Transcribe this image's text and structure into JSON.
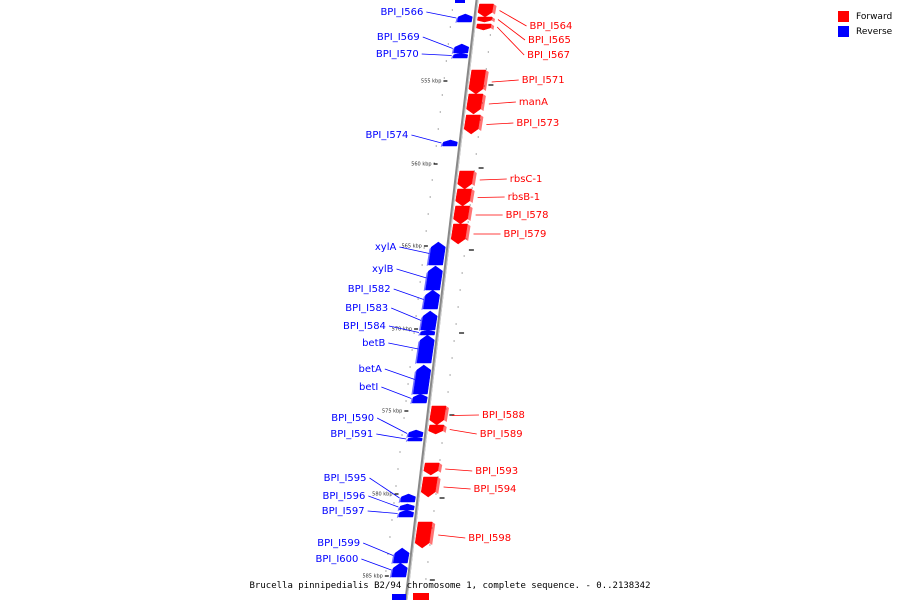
{
  "colors": {
    "forward": "#ff0000",
    "reverse": "#0000ff",
    "backbone": "#888888"
  },
  "legend": {
    "forward_label": "Forward",
    "reverse_label": "Reverse"
  },
  "caption": "Brucella pinnipedialis B2/94 chromosome 1, complete sequence. - 0..2138342",
  "ticks": [
    "555 kbp",
    "560 kbp",
    "565 kbp",
    "570 kbp",
    "575 kbp",
    "580 kbp",
    "585 kbp"
  ],
  "genes": [
    {
      "label": "BPI_I564",
      "strand": "forward"
    },
    {
      "label": "BPI_I565",
      "strand": "forward"
    },
    {
      "label": "BPI_I566",
      "strand": "reverse"
    },
    {
      "label": "BPI_I567",
      "strand": "forward"
    },
    {
      "label": "BPI_I569",
      "strand": "reverse"
    },
    {
      "label": "BPI_I570",
      "strand": "reverse"
    },
    {
      "label": "BPI_I571",
      "strand": "forward"
    },
    {
      "label": "manA",
      "strand": "forward"
    },
    {
      "label": "BPI_I573",
      "strand": "forward"
    },
    {
      "label": "BPI_I574",
      "strand": "reverse"
    },
    {
      "label": "rbsC-1",
      "strand": "forward"
    },
    {
      "label": "rbsB-1",
      "strand": "forward"
    },
    {
      "label": "BPI_I578",
      "strand": "forward"
    },
    {
      "label": "BPI_I579",
      "strand": "forward"
    },
    {
      "label": "xylA",
      "strand": "reverse"
    },
    {
      "label": "xylB",
      "strand": "reverse"
    },
    {
      "label": "BPI_I582",
      "strand": "reverse"
    },
    {
      "label": "BPI_I583",
      "strand": "reverse"
    },
    {
      "label": "BPI_I584",
      "strand": "reverse"
    },
    {
      "label": "betB",
      "strand": "reverse"
    },
    {
      "label": "betA",
      "strand": "reverse"
    },
    {
      "label": "betI",
      "strand": "reverse"
    },
    {
      "label": "BPI_I588",
      "strand": "forward"
    },
    {
      "label": "BPI_I589",
      "strand": "forward"
    },
    {
      "label": "BPI_I590",
      "strand": "reverse"
    },
    {
      "label": "BPI_I591",
      "strand": "reverse"
    },
    {
      "label": "BPI_I593",
      "strand": "forward"
    },
    {
      "label": "BPI_I594",
      "strand": "forward"
    },
    {
      "label": "BPI_I595",
      "strand": "reverse"
    },
    {
      "label": "BPI_I596",
      "strand": "reverse"
    },
    {
      "label": "BPI_I597",
      "strand": "reverse"
    },
    {
      "label": "BPI_I598",
      "strand": "forward"
    },
    {
      "label": "BPI_I599",
      "strand": "reverse"
    },
    {
      "label": "BPI_I600",
      "strand": "reverse"
    }
  ]
}
